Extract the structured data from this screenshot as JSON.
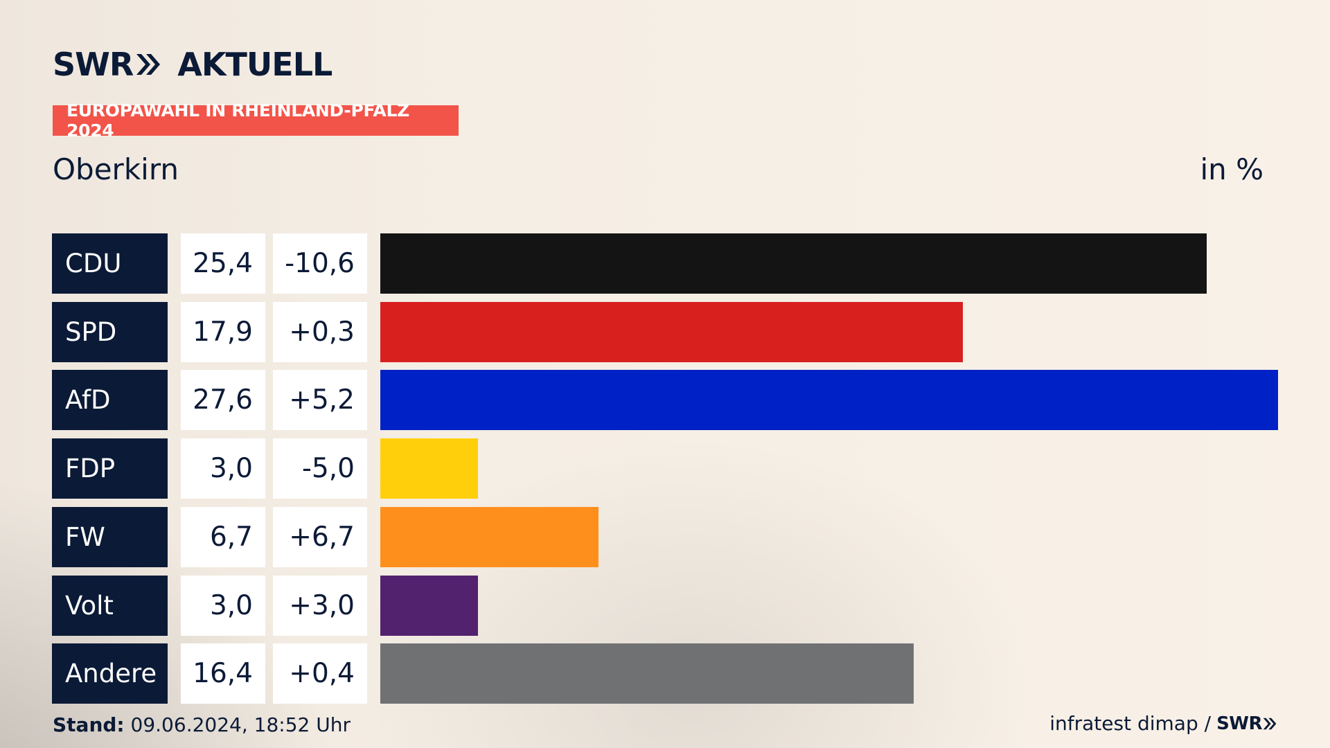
{
  "header": {
    "brand_word": "SWR",
    "brand_product": "AKTUELL",
    "badge": "EUROPAWAHL IN RHEINLAND-PFALZ 2024",
    "region": "Oberkirn",
    "unit": "in %"
  },
  "footer": {
    "stand_label": "Stand:",
    "stand_value": "09.06.2024, 18:52 Uhr",
    "source": "infratest dimap /",
    "source_brand": "SWR"
  },
  "colors": {
    "brand_navy": "#0b1a36",
    "badge_red": "#f2544a"
  },
  "chart_data": {
    "type": "bar",
    "orientation": "horizontal",
    "categories": [
      "CDU",
      "SPD",
      "AfD",
      "FDP",
      "FW",
      "Volt",
      "Andere"
    ],
    "values": [
      25.4,
      17.9,
      27.6,
      3.0,
      6.7,
      3.0,
      16.4
    ],
    "value_labels": [
      "25,4",
      "17,9",
      "27,6",
      "3,0",
      "6,7",
      "3,0",
      "16,4"
    ],
    "changes": [
      -10.6,
      0.3,
      5.2,
      -5.0,
      6.7,
      3.0,
      0.4
    ],
    "change_labels": [
      "-10,6",
      "+0,3",
      "+5,2",
      "-5,0",
      "+6,7",
      "+3,0",
      "+0,4"
    ],
    "bar_colors": [
      "#141414",
      "#d8201f",
      "#0021c6",
      "#ffcf0b",
      "#ff8f1c",
      "#52226f",
      "#707173"
    ],
    "ylabel": "in %",
    "grid": false,
    "legend": "none"
  }
}
